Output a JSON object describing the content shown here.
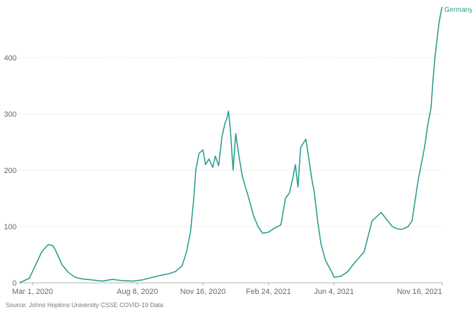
{
  "chart_data": {
    "type": "line",
    "title": "",
    "xlabel": "",
    "ylabel": "",
    "ylim": [
      0,
      490
    ],
    "yticks": [
      0,
      100,
      200,
      300,
      400
    ],
    "x_tick_labels": [
      "Mar 1, 2020",
      "Aug 8, 2020",
      "Nov 16, 2020",
      "Feb 24, 2021",
      "Jun 4, 2021",
      "Nov 16, 2021"
    ],
    "x_tick_dates": [
      "2020-03-01",
      "2020-08-08",
      "2020-11-16",
      "2021-02-24",
      "2021-06-04",
      "2021-11-16"
    ],
    "xlim": [
      "2020-02-10",
      "2021-11-16"
    ],
    "grid": true,
    "line_color": "#2a9d8f",
    "series": [
      {
        "name": "Germany",
        "x": [
          "2020-02-10",
          "2020-02-25",
          "2020-03-05",
          "2020-03-15",
          "2020-03-25",
          "2020-04-01",
          "2020-04-05",
          "2020-04-10",
          "2020-04-15",
          "2020-04-25",
          "2020-05-05",
          "2020-05-15",
          "2020-06-01",
          "2020-06-15",
          "2020-07-01",
          "2020-07-15",
          "2020-08-01",
          "2020-08-15",
          "2020-09-01",
          "2020-09-15",
          "2020-09-25",
          "2020-10-05",
          "2020-10-15",
          "2020-10-22",
          "2020-10-28",
          "2020-11-02",
          "2020-11-05",
          "2020-11-10",
          "2020-11-16",
          "2020-11-20",
          "2020-11-25",
          "2020-12-01",
          "2020-12-05",
          "2020-12-10",
          "2020-12-15",
          "2020-12-20",
          "2020-12-22",
          "2020-12-25",
          "2020-12-28",
          "2021-01-01",
          "2021-01-05",
          "2021-01-10",
          "2021-01-15",
          "2021-01-20",
          "2021-01-25",
          "2021-02-01",
          "2021-02-08",
          "2021-02-15",
          "2021-02-24",
          "2021-03-05",
          "2021-03-15",
          "2021-03-22",
          "2021-03-28",
          "2021-04-02",
          "2021-04-06",
          "2021-04-10",
          "2021-04-14",
          "2021-04-18",
          "2021-04-22",
          "2021-04-26",
          "2021-05-01",
          "2021-05-05",
          "2021-05-10",
          "2021-05-15",
          "2021-05-22",
          "2021-06-01",
          "2021-06-04",
          "2021-06-15",
          "2021-06-25",
          "2021-07-05",
          "2021-07-20",
          "2021-08-01",
          "2021-08-15",
          "2021-08-25",
          "2021-09-01",
          "2021-09-08",
          "2021-09-15",
          "2021-09-20",
          "2021-09-25",
          "2021-10-01",
          "2021-10-10",
          "2021-10-20",
          "2021-10-25",
          "2021-10-30",
          "2021-11-02",
          "2021-11-05",
          "2021-11-08",
          "2021-11-11",
          "2021-11-14",
          "2021-11-16"
        ],
        "y": [
          0,
          8,
          30,
          55,
          68,
          66,
          58,
          45,
          32,
          18,
          10,
          7,
          5,
          3,
          6,
          4,
          3,
          5,
          10,
          14,
          16,
          20,
          30,
          55,
          90,
          150,
          200,
          230,
          236,
          210,
          220,
          205,
          225,
          208,
          260,
          285,
          290,
          305,
          270,
          200,
          265,
          225,
          190,
          170,
          150,
          120,
          100,
          88,
          90,
          97,
          103,
          150,
          160,
          185,
          210,
          170,
          240,
          248,
          255,
          225,
          185,
          160,
          110,
          70,
          40,
          18,
          10,
          12,
          20,
          35,
          55,
          110,
          125,
          110,
          100,
          96,
          95,
          97,
          100,
          110,
          180,
          240,
          280,
          310,
          360,
          400,
          430,
          460,
          480,
          490
        ]
      }
    ]
  },
  "series_label": "Germany",
  "source": "Source: Johns Hopkins University CSSE COVID-19 Data"
}
